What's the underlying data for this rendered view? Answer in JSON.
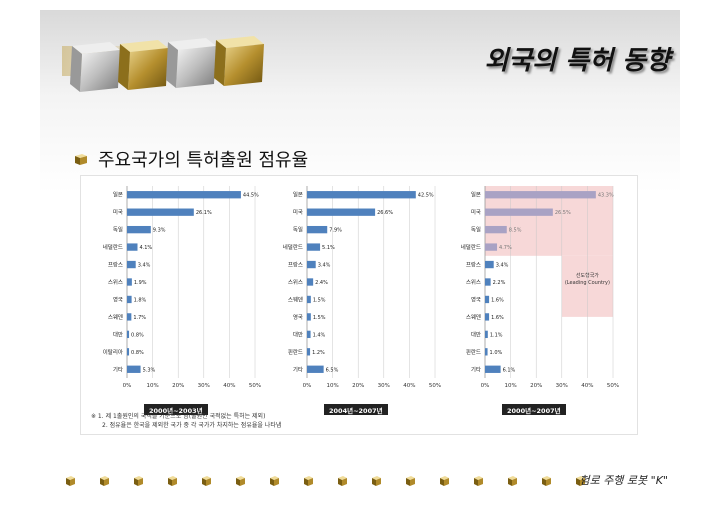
{
  "slide": {
    "title": "외국의 특허 동향",
    "subtitle": "주요국가의 특허출원 점유율",
    "footer": "험로 주행 로봇 \"K\""
  },
  "figure": {
    "notes": [
      "※ 1. 제 1출원인의 국적을 기준으로 함(출원인 국적없는 특허는 제외)",
      "2. 점유율은 한국을 제외한 국가 중 각 국가가 차지하는 점유율을 나타냄"
    ],
    "leading_box_label_1": "선도형국가",
    "leading_box_label_2": "(Leading Country)"
  },
  "chart_data": [
    {
      "type": "bar",
      "orientation": "horizontal",
      "period_label": "2000년~2003년",
      "categories": [
        "일본",
        "미국",
        "독일",
        "네덜란드",
        "프랑스",
        "스위스",
        "영국",
        "스웨덴",
        "대만",
        "이탈리아",
        "기타"
      ],
      "values": [
        44.5,
        26.1,
        9.3,
        4.1,
        3.4,
        1.9,
        1.8,
        1.7,
        0.8,
        0.8,
        5.3
      ],
      "value_labels": [
        "44.5%",
        "26.1%",
        "9.3%",
        "4.1%",
        "3.4%",
        "1.9%",
        "1.8%",
        "1.7%",
        "0.8%",
        "0.8%",
        "5.3%"
      ],
      "xlim": [
        0,
        50
      ],
      "xticks": [
        "0%",
        "10%",
        "20%",
        "30%",
        "40%",
        "50%"
      ],
      "grid": true,
      "bar_color": "#4f81bd"
    },
    {
      "type": "bar",
      "orientation": "horizontal",
      "period_label": "2004년~2007년",
      "categories": [
        "일본",
        "미국",
        "독일",
        "네덜란드",
        "프랑스",
        "스위스",
        "스웨덴",
        "영국",
        "대만",
        "핀란드",
        "기타"
      ],
      "values": [
        42.5,
        26.6,
        7.9,
        5.1,
        3.4,
        2.4,
        1.5,
        1.5,
        1.4,
        1.2,
        6.5
      ],
      "value_labels": [
        "42.5%",
        "26.6%",
        "7.9%",
        "5.1%",
        "3.4%",
        "2.4%",
        "1.5%",
        "1.5%",
        "1.4%",
        "1.2%",
        "6.5%"
      ],
      "xlim": [
        0,
        50
      ],
      "xticks": [
        "0%",
        "10%",
        "20%",
        "30%",
        "40%",
        "50%"
      ],
      "grid": true,
      "bar_color": "#4f81bd"
    },
    {
      "type": "bar",
      "orientation": "horizontal",
      "period_label": "2000년~2007년",
      "categories": [
        "일본",
        "미국",
        "독일",
        "네덜란드",
        "프랑스",
        "스위스",
        "영국",
        "스웨덴",
        "대만",
        "핀란드",
        "기타"
      ],
      "values": [
        43.3,
        26.5,
        8.5,
        4.7,
        3.4,
        2.2,
        1.6,
        1.6,
        1.1,
        1.0,
        6.1
      ],
      "value_labels": [
        "43.3%",
        "26.5%",
        "8.5%",
        "4.7%",
        "3.4%",
        "2.2%",
        "1.6%",
        "1.6%",
        "1.1%",
        "1.0%",
        "6.1%"
      ],
      "xlim": [
        0,
        50
      ],
      "xticks": [
        "0%",
        "10%",
        "20%",
        "30%",
        "40%",
        "50%"
      ],
      "grid": true,
      "bar_color": "#4f81bd",
      "highlight_color": "#f2c4c4",
      "highlight_count": 4
    }
  ],
  "colors": {
    "bar": "#4f81bd",
    "highlight_bar": "#a9a2c4",
    "leading_region": "#f7d8d8",
    "period_bg": "#222222"
  }
}
